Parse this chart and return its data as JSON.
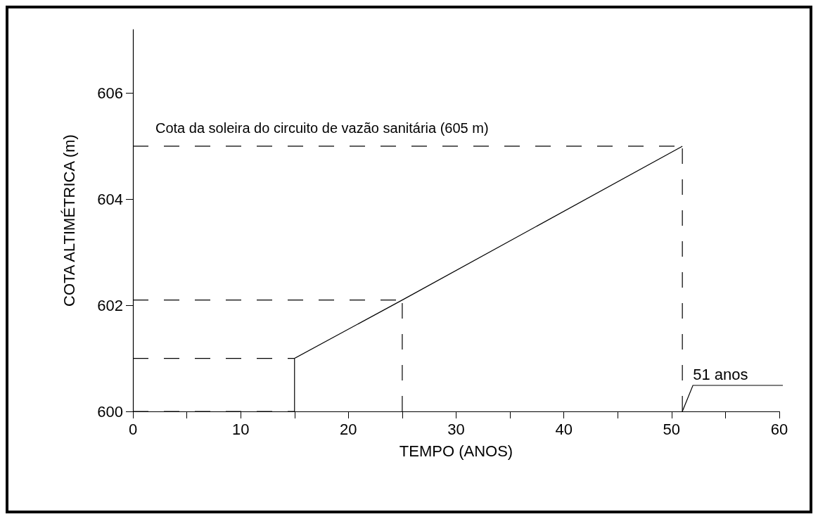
{
  "chart_data": {
    "type": "line",
    "xlabel": "TEMPO (ANOS)",
    "ylabel": "COTA ALTIMÉTRICA (m)",
    "series": [
      {
        "color": "#000000",
        "x": [
          15,
          15,
          25,
          51
        ],
        "values": [
          600,
          601,
          602.1,
          605
        ],
        "line_style": "solid"
      },
      {
        "color": "#000000",
        "x": [
          0,
          15
        ],
        "values": [
          600,
          600
        ],
        "line_style": "dashed"
      },
      {
        "color": "#000000",
        "x": [
          0,
          15
        ],
        "values": [
          601,
          601
        ],
        "line_style": "dashed"
      },
      {
        "color": "#000000",
        "x": [
          0,
          25
        ],
        "values": [
          602.1,
          602.1
        ],
        "line_style": "dashed"
      },
      {
        "color": "#000000",
        "x": [
          25,
          25
        ],
        "values": [
          600,
          602.1
        ],
        "line_style": "dashed"
      },
      {
        "color": "#000000",
        "x": [
          0,
          51
        ],
        "values": [
          605,
          605
        ],
        "line_style": "dashed"
      },
      {
        "color": "#000000",
        "x": [
          51,
          51
        ],
        "values": [
          600,
          605
        ],
        "line_style": "dashed"
      }
    ],
    "xlim": [
      0,
      60
    ],
    "ylim": [
      600,
      607.2
    ],
    "xticks": [
      0,
      {
        "value": 5,
        "label": null
      },
      10,
      {
        "value": 15,
        "label": null
      },
      20,
      {
        "value": 25,
        "label": null
      },
      30,
      {
        "value": 35,
        "label": null
      },
      40,
      {
        "value": 45,
        "label": null
      },
      50,
      {
        "value": 55,
        "label": null
      },
      60
    ],
    "yticks": [
      600,
      602,
      604,
      606
    ],
    "grid": false,
    "marker": "none",
    "annotations": [
      "Cota da soleira do circuito de vazão sanitária (605 m)",
      {
        "text": "51 anos",
        "x": 51,
        "y": 600
      }
    ]
  }
}
